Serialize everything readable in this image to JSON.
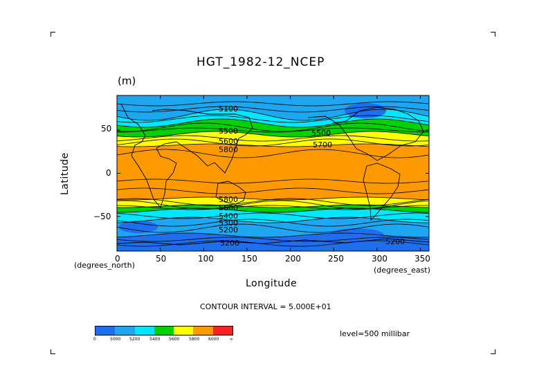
{
  "page": {
    "title": "HGT_1982-12_NCEP",
    "units": "(m)",
    "xlabel": "Longitude",
    "ylabel": "Latitude",
    "x_units_note": "(degrees_east)",
    "y_units_note": "(degrees_north)",
    "contour_interval": "CONTOUR INTERVAL = 5.000E+01",
    "level": "level=500 millibar"
  },
  "map": {
    "x_ticks": [
      "0",
      "50",
      "100",
      "150",
      "200",
      "250",
      "300",
      "350"
    ],
    "y_ticks": [
      "50",
      "0",
      "−50"
    ],
    "contour_labels": [
      "5100",
      "5200",
      "5200",
      "5500",
      "5600",
      "5700",
      "5800",
      "5400",
      "5300",
      "5200",
      "5500",
      "5800",
      "5600"
    ]
  },
  "colorbar": {
    "labels": [
      "0",
      "5000",
      "5200",
      "5400",
      "5600",
      "5800",
      "6000",
      "∞"
    ],
    "colors": [
      "#1e6ef0",
      "#1ea6f0",
      "#00e6ff",
      "#00d200",
      "#ffff00",
      "#ff9900",
      "#ff2020"
    ]
  },
  "bands": {
    "colors": {
      "deep": "#1e6ef0",
      "blue": "#1ea6f0",
      "cyan": "#00e6ff",
      "green": "#00d200",
      "yellow": "#ffff00",
      "orange": "#ff9900"
    }
  }
}
